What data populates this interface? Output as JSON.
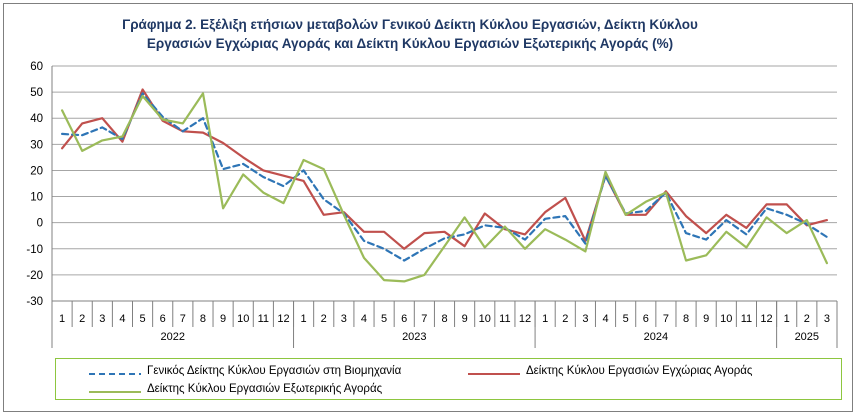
{
  "chart_data": {
    "type": "line",
    "title_lines": [
      "Γράφημα 2. Εξέλιξη ετήσιων μεταβολών Γενικού Δείκτη Κύκλου Εργασιών,  Δείκτη Κύκλου",
      "Εργασιών Εγχώριας Αγοράς και Δείκτη Κύκλου Εργασιών Εξωτερικής Αγοράς (%)"
    ],
    "xlabel": "",
    "ylabel": "",
    "ylim": [
      -30,
      60
    ],
    "yticks": [
      -30,
      -20,
      -10,
      0,
      10,
      20,
      30,
      40,
      50,
      60
    ],
    "grid": true,
    "legend_position": "bottom",
    "categories": [
      "1",
      "2",
      "3",
      "4",
      "5",
      "6",
      "7",
      "8",
      "9",
      "10",
      "11",
      "12",
      "1",
      "2",
      "3",
      "4",
      "5",
      "6",
      "7",
      "8",
      "9",
      "10",
      "11",
      "12",
      "1",
      "2",
      "3",
      "4",
      "5",
      "6",
      "7",
      "8",
      "9",
      "10",
      "11",
      "12",
      "1",
      "2",
      "3"
    ],
    "year_groups": [
      {
        "label": "2022",
        "count": 12
      },
      {
        "label": "2023",
        "count": 12
      },
      {
        "label": "2024",
        "count": 12
      },
      {
        "label": "2025",
        "count": 3
      }
    ],
    "series": [
      {
        "name": "Γενικός Δείκτης Κύκλου Εργασιών στη Βιομηχανία",
        "color": "#2e75b6",
        "style": "dashed",
        "values": [
          34,
          33.5,
          36.5,
          32,
          49.5,
          40.5,
          35,
          40,
          20.5,
          22.5,
          17.5,
          14,
          20,
          9,
          3.5,
          -7,
          -10,
          -14.5,
          -10,
          -6,
          -4.5,
          -1,
          -2,
          -6.5,
          1.5,
          2.5,
          -8,
          18,
          3.5,
          4.5,
          11.5,
          -4,
          -6.5,
          1,
          -4.5,
          5.5,
          3,
          -0.5,
          -5.5
        ]
      },
      {
        "name": "Δείκτης Κύκλου Εργασιών Εγχώριας Αγοράς",
        "color": "#c0504d",
        "style": "solid",
        "values": [
          28.5,
          38,
          40,
          31,
          51,
          39,
          35,
          34.5,
          30.5,
          25,
          20,
          18,
          16,
          3,
          4,
          -3.5,
          -3.5,
          -10,
          -4,
          -3.5,
          -9,
          3.5,
          -2.5,
          -4.5,
          4,
          9.5,
          -7,
          18,
          3,
          3,
          12,
          2.5,
          -4,
          3,
          -2,
          7,
          7,
          -1,
          1
        ]
      },
      {
        "name": "Δείκτης Κύκλου Εργασιών Εξωτερικής Αγοράς",
        "color": "#9bbb59",
        "style": "solid",
        "values": [
          43,
          27.5,
          31.5,
          33,
          48.5,
          39.5,
          38,
          49.5,
          5.5,
          18.5,
          11.5,
          7.5,
          24,
          20.5,
          3,
          -13.5,
          -22,
          -22.5,
          -20,
          -9,
          2,
          -9.5,
          -1.5,
          -10,
          -2.5,
          -6.5,
          -11,
          19.5,
          3,
          8,
          11.5,
          -14.5,
          -12.5,
          -3.5,
          -9.5,
          2,
          -4,
          1,
          -15.5
        ]
      }
    ]
  }
}
